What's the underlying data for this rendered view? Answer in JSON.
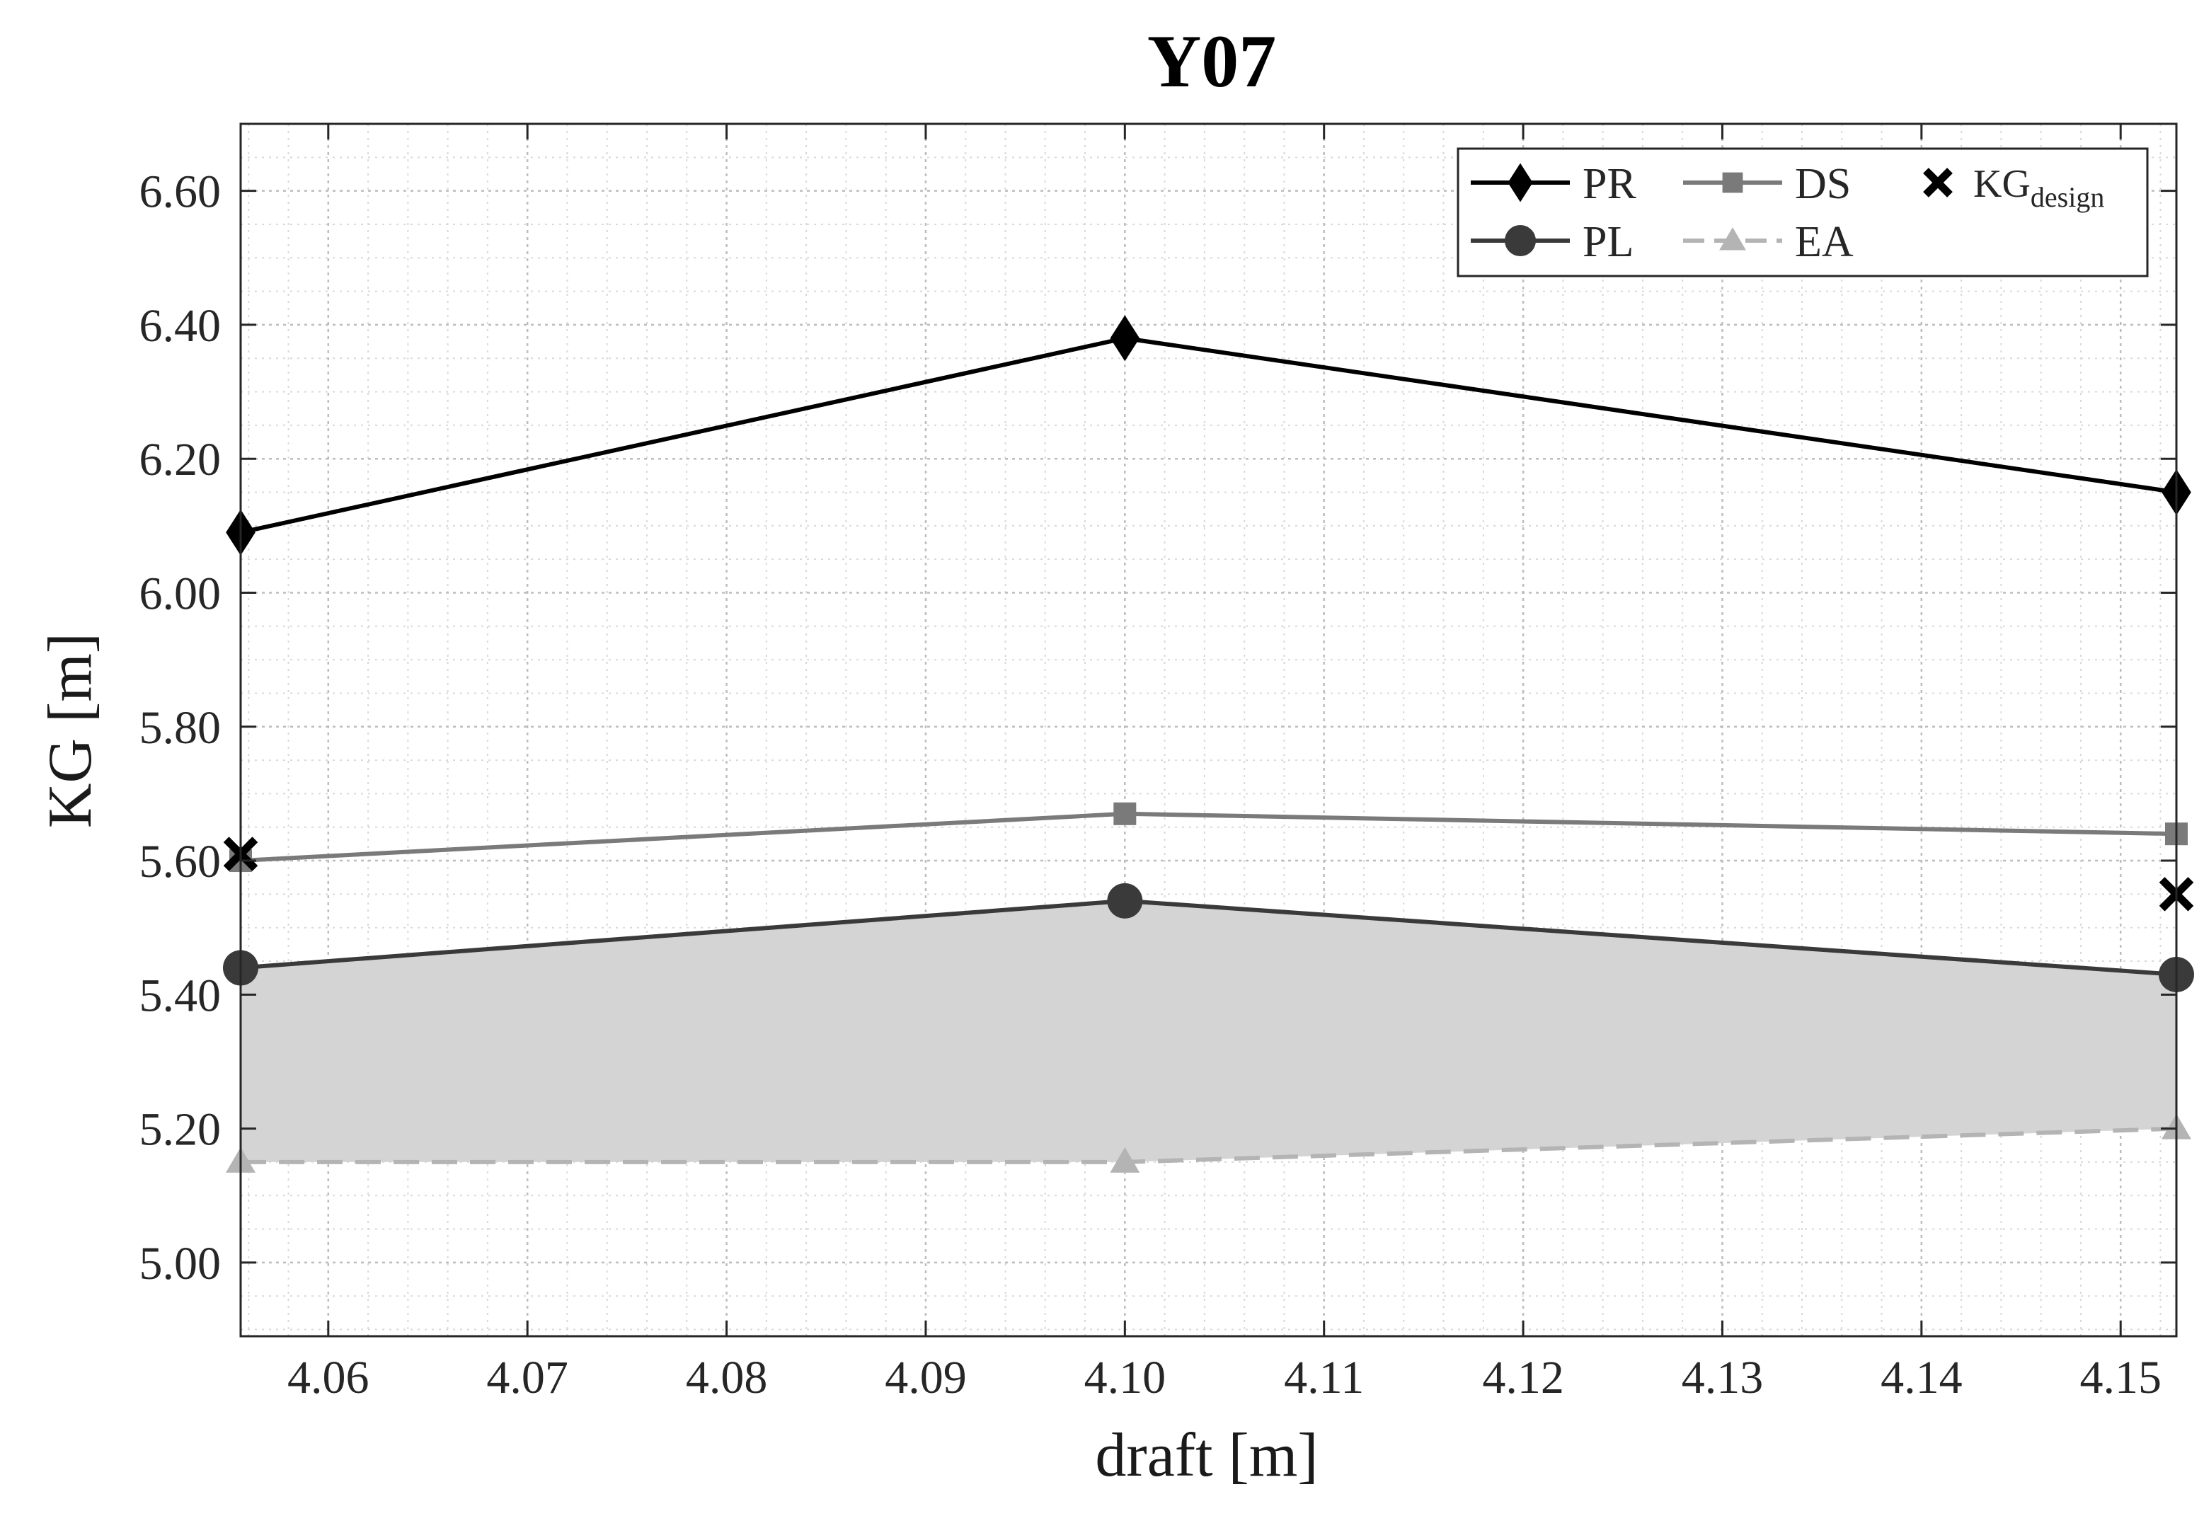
{
  "chart_data": {
    "type": "line",
    "title": "Y07",
    "xlabel": "draft [m]",
    "ylabel": "KG [m]",
    "xlim": [
      4.0556,
      4.1528
    ],
    "ylim": [
      4.89,
      6.7
    ],
    "xticks": [
      4.06,
      4.07,
      4.08,
      4.09,
      4.1,
      4.11,
      4.12,
      4.13,
      4.14,
      4.15
    ],
    "xtick_labels": [
      "4.06",
      "4.07",
      "4.08",
      "4.09",
      "4.10",
      "4.11",
      "4.12",
      "4.13",
      "4.14",
      "4.15"
    ],
    "yticks": [
      5.0,
      5.2,
      5.4,
      5.6,
      5.8,
      6.0,
      6.2,
      6.4,
      6.6
    ],
    "ytick_labels": [
      "5.00",
      "5.20",
      "5.40",
      "5.60",
      "5.80",
      "6.00",
      "6.20",
      "6.40",
      "6.60"
    ],
    "grid": true,
    "minor_grid": true,
    "legend_position": "top-right",
    "x": [
      4.0556,
      4.1,
      4.1528
    ],
    "series": [
      {
        "name": "PR",
        "marker": "diamond",
        "color": "#000000",
        "dash": "solid",
        "values": [
          6.09,
          6.38,
          6.15
        ]
      },
      {
        "name": "DS",
        "marker": "square",
        "color": "#7a7a7a",
        "dash": "solid",
        "values": [
          5.6,
          5.67,
          5.64
        ]
      },
      {
        "name": "PL",
        "marker": "circle",
        "color": "#3a3a3a",
        "dash": "solid",
        "values": [
          5.44,
          5.54,
          5.43
        ]
      },
      {
        "name": "EA",
        "marker": "triangle",
        "color": "#b4b4b4",
        "dash": "dashed",
        "values": [
          5.15,
          5.15,
          5.2
        ]
      }
    ],
    "kg_design": {
      "name": "KG",
      "subscript": "design",
      "marker": "x",
      "color": "#000000",
      "points": [
        {
          "x": 4.0556,
          "y": 5.61
        },
        {
          "x": 4.1528,
          "y": 5.55
        }
      ]
    },
    "shaded_band": {
      "between": [
        "EA",
        "PL"
      ],
      "color": "#d4d4d4"
    }
  }
}
